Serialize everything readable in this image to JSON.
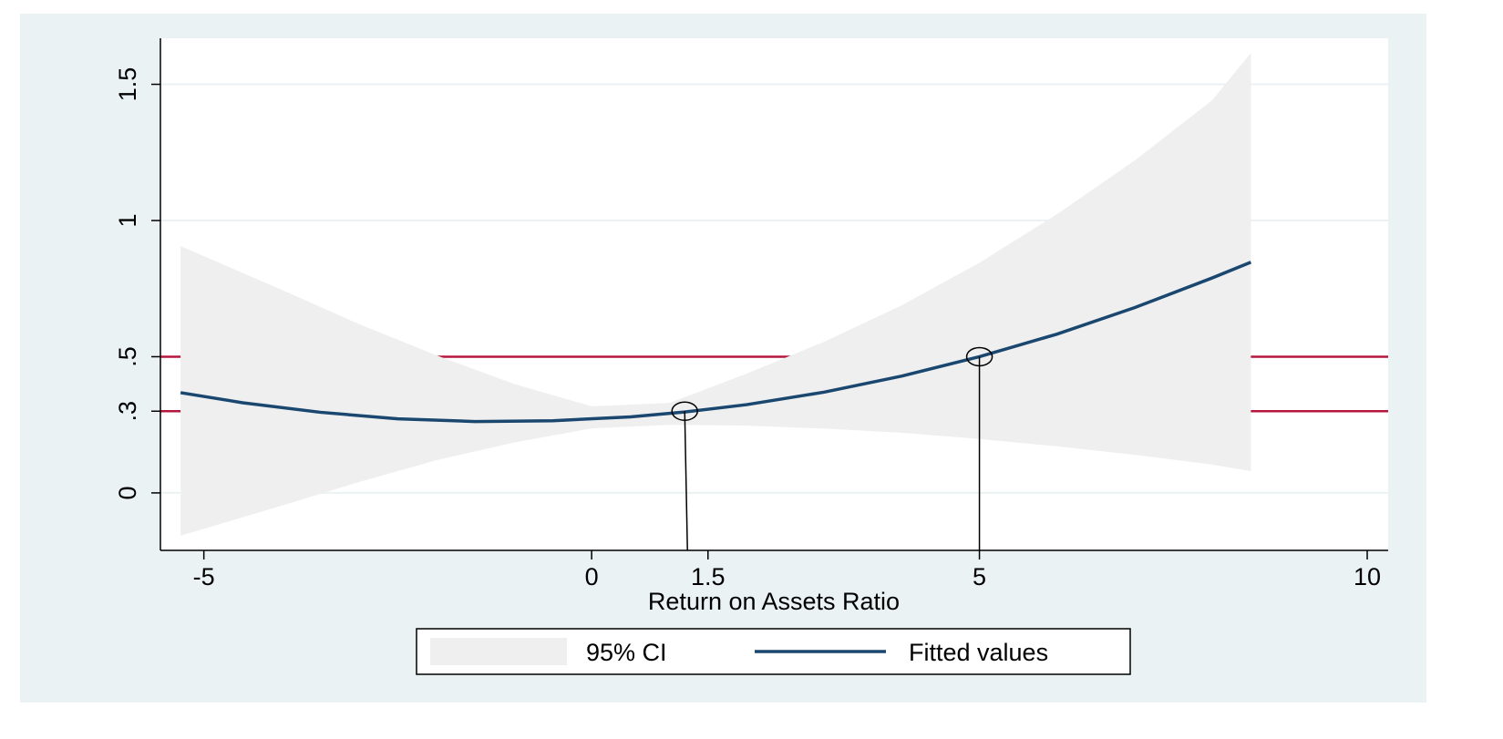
{
  "chart_data": {
    "type": "line",
    "x_label": "Return on Assets Ratio",
    "xlim": [
      -5.56,
      10.27
    ],
    "ylim": [
      -0.211,
      1.669
    ],
    "xticks": [
      -5,
      0,
      1.5,
      5,
      10
    ],
    "yticks": [
      0,
      {
        "value": 0.3,
        "label": ".3"
      },
      {
        "value": 0.5,
        "label": ".5"
      },
      1,
      1.5
    ],
    "grid": true,
    "series": [
      {
        "name": "95% CI",
        "kind": "band",
        "color": "#efefef",
        "x": [
          -5.3,
          -4,
          -3,
          -2,
          -1,
          0,
          1,
          2,
          3,
          4,
          5,
          6,
          7,
          8,
          8.5
        ],
        "upper": [
          0.906,
          0.746,
          0.62,
          0.505,
          0.4,
          0.318,
          0.33,
          0.438,
          0.555,
          0.689,
          0.845,
          1.023,
          1.22,
          1.441,
          1.615
        ],
        "lower": [
          -0.157,
          -0.047,
          0.04,
          0.12,
          0.185,
          0.237,
          0.25,
          0.247,
          0.236,
          0.221,
          0.198,
          0.171,
          0.14,
          0.104,
          0.08
        ]
      },
      {
        "name": "Fitted values",
        "kind": "line",
        "color": "#1a476f",
        "x": [
          -5.3,
          -4.5,
          -3.5,
          -2.5,
          -1.5,
          -0.5,
          0.5,
          1.2,
          2,
          3,
          4,
          5,
          6,
          7,
          8,
          8.5
        ],
        "values": [
          0.368,
          0.331,
          0.296,
          0.272,
          0.262,
          0.265,
          0.279,
          0.297,
          0.324,
          0.37,
          0.429,
          0.5,
          0.583,
          0.68,
          0.789,
          0.847
        ]
      }
    ],
    "reference_lines": {
      "color": "#b5163c",
      "y": [
        0.5,
        0.3
      ]
    },
    "markers": [
      {
        "x": 1.2,
        "y": 0.3
      },
      {
        "x": 5,
        "y": 0.5
      }
    ],
    "legend": "bottom"
  }
}
